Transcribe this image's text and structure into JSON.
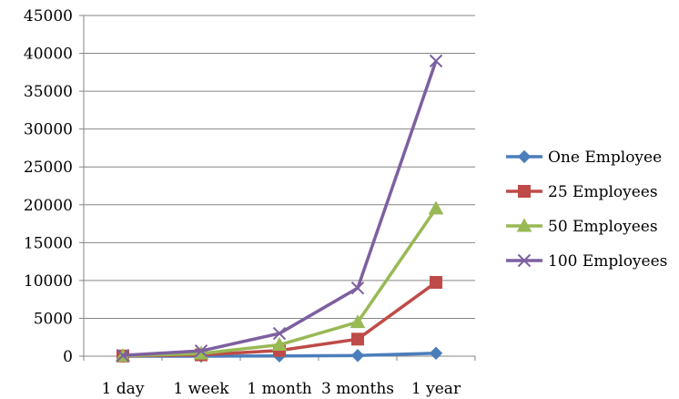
{
  "chart_data": {
    "type": "line",
    "title": "",
    "xlabel": "",
    "ylabel": "",
    "categories": [
      "1 day",
      "1 week",
      "1 month",
      "3 months",
      "1 year"
    ],
    "ylim": [
      0,
      45000
    ],
    "yticks": [
      0,
      5000,
      10000,
      15000,
      20000,
      25000,
      30000,
      35000,
      40000,
      45000
    ],
    "grid": true,
    "legend_position": "right",
    "series": [
      {
        "name": "One Employee",
        "color": "#4a7ebb",
        "marker": "diamond",
        "values": [
          1,
          7,
          30,
          90,
          390
        ]
      },
      {
        "name": "25 Employees",
        "color": "#be4b48",
        "marker": "square",
        "values": [
          25,
          175,
          750,
          2250,
          9750
        ]
      },
      {
        "name": "50 Employees",
        "color": "#98b954",
        "marker": "triangle",
        "values": [
          50,
          350,
          1500,
          4500,
          19500
        ]
      },
      {
        "name": "100 Employees",
        "color": "#7d60a0",
        "marker": "x",
        "values": [
          100,
          700,
          3000,
          9000,
          39000
        ]
      }
    ]
  }
}
